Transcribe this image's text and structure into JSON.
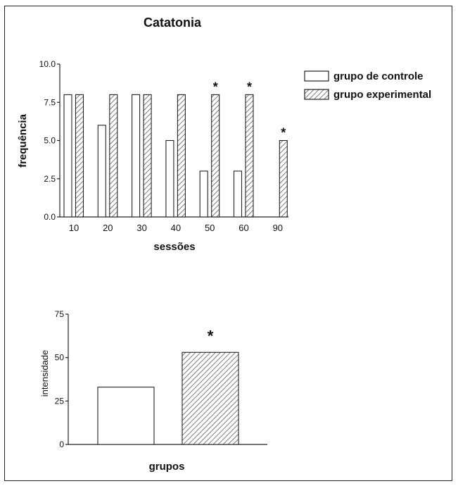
{
  "chart_data": [
    {
      "type": "bar",
      "title": "Catatonia",
      "xlabel": "sessões",
      "ylabel": "frequência",
      "categories": [
        "10",
        "20",
        "30",
        "40",
        "50",
        "60",
        "90"
      ],
      "yticks": [
        "0.0",
        "2.5",
        "5.0",
        "7.5",
        "10.0"
      ],
      "ylim": [
        0,
        10
      ],
      "series": [
        {
          "name": "grupo de controle",
          "pattern": "open",
          "values": [
            8,
            6,
            8,
            5,
            3,
            3,
            0
          ]
        },
        {
          "name": "grupo experimental",
          "pattern": "hatched",
          "values": [
            8,
            8,
            8,
            8,
            8,
            8,
            5
          ]
        }
      ],
      "annotations": [
        {
          "category": "50",
          "text": "*"
        },
        {
          "category": "60",
          "text": "*"
        },
        {
          "category": "90",
          "text": "*"
        }
      ],
      "legend_position": "right"
    },
    {
      "type": "bar",
      "xlabel": "grupos",
      "ylabel": "intensidade",
      "yticks": [
        "0",
        "25",
        "50",
        "75"
      ],
      "ylim": [
        0,
        75
      ],
      "series": [
        {
          "pattern": "open",
          "values": [
            33
          ]
        },
        {
          "pattern": "hatched",
          "values": [
            53
          ]
        }
      ],
      "annotations": [
        {
          "series_index": 1,
          "text": "*"
        }
      ]
    }
  ]
}
